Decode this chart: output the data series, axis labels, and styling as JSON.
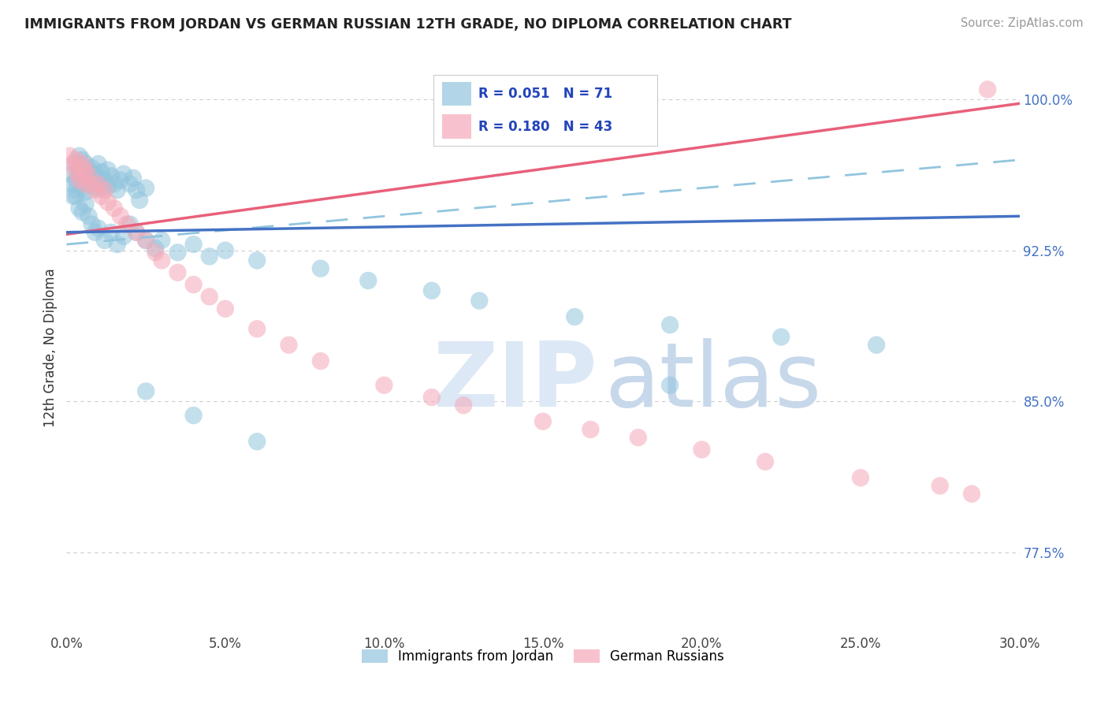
{
  "title": "IMMIGRANTS FROM JORDAN VS GERMAN RUSSIAN 12TH GRADE, NO DIPLOMA CORRELATION CHART",
  "source": "Source: ZipAtlas.com",
  "ylabel": "12th Grade, No Diploma",
  "xmin": 0.0,
  "xmax": 0.3,
  "ymin": 0.735,
  "ymax": 1.018,
  "x_tick_values": [
    0.0,
    0.05,
    0.1,
    0.15,
    0.2,
    0.25,
    0.3
  ],
  "x_tick_labels": [
    "0.0%",
    "5.0%",
    "10.0%",
    "15.0%",
    "20.0%",
    "25.0%",
    "30.0%"
  ],
  "y_tick_values": [
    0.775,
    0.85,
    0.925,
    1.0
  ],
  "y_tick_labels": [
    "77.5%",
    "85.0%",
    "92.5%",
    "100.0%"
  ],
  "legend_label_1": "Immigrants from Jordan",
  "legend_label_2": "German Russians",
  "R1": 0.051,
  "N1": 71,
  "R2": 0.18,
  "N2": 43,
  "color_blue": "#92c5de",
  "color_pink": "#f4a9b8",
  "color_line_blue": "#4472c4",
  "color_line_pink": "#e8607a",
  "color_dashed": "#92c5de",
  "blue_line_y0": 0.934,
  "blue_line_y1": 0.942,
  "pink_line_y0": 0.933,
  "pink_line_y1": 0.998,
  "dashed_line_y0": 0.928,
  "dashed_line_y1": 0.97,
  "watermark_zip_color": "#dce8f5",
  "watermark_atlas_color": "#c8d8eb",
  "background_color": "#ffffff",
  "blue_scatter_x": [
    0.001,
    0.002,
    0.002,
    0.003,
    0.003,
    0.003,
    0.004,
    0.004,
    0.005,
    0.005,
    0.005,
    0.006,
    0.006,
    0.006,
    0.007,
    0.007,
    0.008,
    0.008,
    0.009,
    0.009,
    0.01,
    0.01,
    0.011,
    0.011,
    0.012,
    0.013,
    0.013,
    0.014,
    0.015,
    0.016,
    0.017,
    0.018,
    0.02,
    0.021,
    0.022,
    0.023,
    0.025,
    0.003,
    0.004,
    0.005,
    0.006,
    0.007,
    0.008,
    0.009,
    0.01,
    0.012,
    0.014,
    0.016,
    0.018,
    0.02,
    0.022,
    0.025,
    0.028,
    0.03,
    0.035,
    0.04,
    0.045,
    0.05,
    0.06,
    0.08,
    0.095,
    0.115,
    0.13,
    0.16,
    0.19,
    0.225,
    0.255,
    0.025,
    0.04,
    0.06,
    0.19
  ],
  "blue_scatter_y": [
    0.963,
    0.958,
    0.952,
    0.968,
    0.96,
    0.955,
    0.972,
    0.964,
    0.97,
    0.962,
    0.956,
    0.968,
    0.96,
    0.954,
    0.965,
    0.958,
    0.966,
    0.96,
    0.963,
    0.956,
    0.968,
    0.96,
    0.964,
    0.956,
    0.96,
    0.965,
    0.957,
    0.962,
    0.958,
    0.955,
    0.96,
    0.963,
    0.958,
    0.961,
    0.955,
    0.95,
    0.956,
    0.952,
    0.946,
    0.944,
    0.948,
    0.942,
    0.938,
    0.934,
    0.936,
    0.93,
    0.934,
    0.928,
    0.932,
    0.938,
    0.934,
    0.93,
    0.926,
    0.93,
    0.924,
    0.928,
    0.922,
    0.925,
    0.92,
    0.916,
    0.91,
    0.905,
    0.9,
    0.892,
    0.888,
    0.882,
    0.878,
    0.855,
    0.843,
    0.83,
    0.858
  ],
  "pink_scatter_x": [
    0.001,
    0.002,
    0.003,
    0.003,
    0.004,
    0.004,
    0.005,
    0.005,
    0.006,
    0.006,
    0.007,
    0.008,
    0.009,
    0.01,
    0.011,
    0.012,
    0.013,
    0.015,
    0.017,
    0.019,
    0.022,
    0.025,
    0.028,
    0.03,
    0.035,
    0.04,
    0.045,
    0.05,
    0.06,
    0.07,
    0.08,
    0.1,
    0.115,
    0.125,
    0.15,
    0.165,
    0.18,
    0.2,
    0.22,
    0.25,
    0.275,
    0.285,
    0.29
  ],
  "pink_scatter_y": [
    0.972,
    0.968,
    0.97,
    0.964,
    0.966,
    0.96,
    0.968,
    0.962,
    0.965,
    0.958,
    0.962,
    0.958,
    0.955,
    0.958,
    0.952,
    0.955,
    0.949,
    0.946,
    0.942,
    0.938,
    0.934,
    0.93,
    0.924,
    0.92,
    0.914,
    0.908,
    0.902,
    0.896,
    0.886,
    0.878,
    0.87,
    0.858,
    0.852,
    0.848,
    0.84,
    0.836,
    0.832,
    0.826,
    0.82,
    0.812,
    0.808,
    0.804,
    1.005
  ]
}
